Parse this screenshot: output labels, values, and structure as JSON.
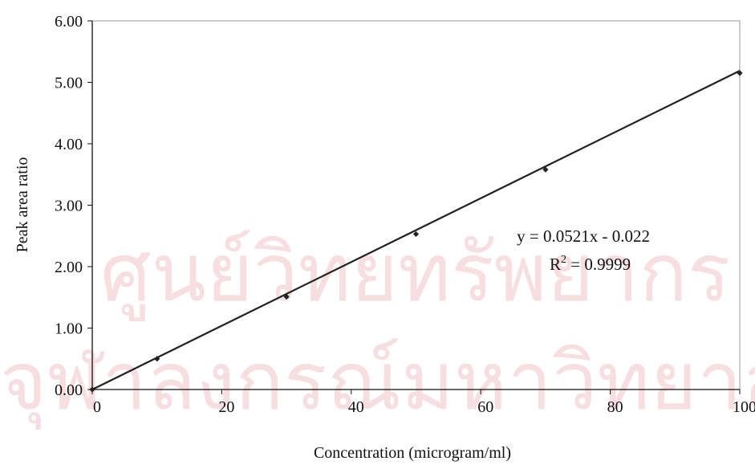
{
  "watermark": {
    "line1": "ศูนย์วิทยทรัพยากร",
    "line2": "จุฬาลงกรณ์มหาวิทยาลัย"
  },
  "chart_data": {
    "type": "scatter",
    "title": "",
    "xlabel": "Concentration (microgram/ml)",
    "ylabel": "Peak area ratio",
    "xlim": [
      0,
      100
    ],
    "ylim": [
      0,
      6
    ],
    "x_ticks": [
      "0",
      "20",
      "40",
      "60",
      "80",
      "100"
    ],
    "y_ticks": [
      "0.00",
      "1.00",
      "2.00",
      "3.00",
      "4.00",
      "5.00",
      "6.00"
    ],
    "grid": false,
    "legend": "none",
    "marker_color": "#222222",
    "series": [
      {
        "x": [
          0,
          10,
          30,
          50,
          70,
          100
        ],
        "y": [
          0.0,
          0.5,
          1.51,
          2.53,
          3.58,
          5.15
        ]
      }
    ],
    "trendline": {
      "slope": 0.0521,
      "intercept": -0.022,
      "x_range": [
        0,
        100
      ],
      "color": "#222222"
    },
    "annotations": {
      "equation": "y = 0.0521x - 0.022",
      "r_squared_label": "R",
      "r_squared_exponent": "2",
      "r_squared_value": " = 0.9999"
    }
  }
}
